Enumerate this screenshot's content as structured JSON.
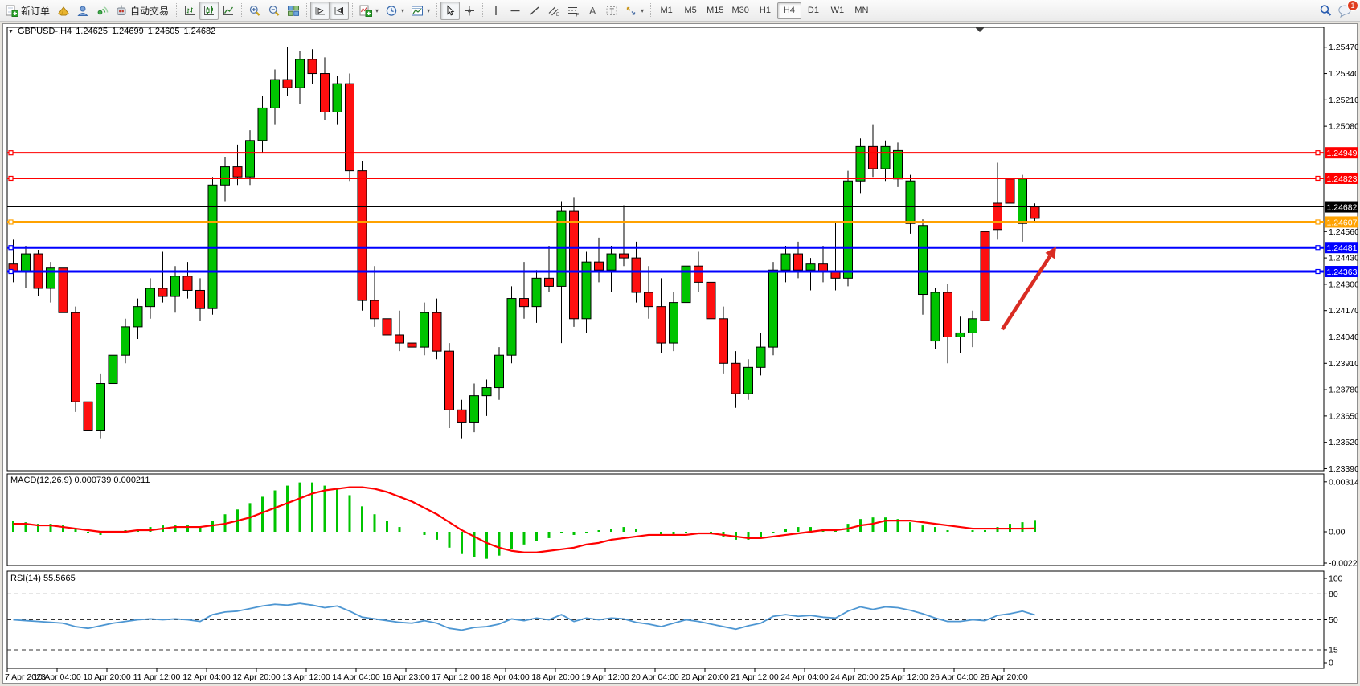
{
  "toolbar": {
    "groups": [
      {
        "items": [
          {
            "name": "new-order-button",
            "icon": "new-order-icon",
            "label": "新订单"
          },
          {
            "name": "metaeditor-button",
            "icon": "metaeditor-icon"
          },
          {
            "name": "mql5-community-button",
            "icon": "mql5-community-icon"
          },
          {
            "name": "signals-button",
            "icon": "signals-icon"
          },
          {
            "name": "autotrading-button",
            "icon": "autotrading-icon",
            "label": "自动交易"
          }
        ]
      },
      {
        "items": [
          {
            "name": "bar-chart-button",
            "icon": "bar-chart-icon"
          },
          {
            "name": "candlestick-button",
            "icon": "candlestick-icon",
            "pressed": true
          },
          {
            "name": "line-chart-button",
            "icon": "line-chart-icon"
          }
        ]
      },
      {
        "items": [
          {
            "name": "zoom-in-button",
            "icon": "zoom-in-icon"
          },
          {
            "name": "zoom-out-button",
            "icon": "zoom-out-icon"
          },
          {
            "name": "tile-windows-button",
            "icon": "tile-windows-icon"
          }
        ]
      },
      {
        "items": [
          {
            "name": "auto-scroll-button",
            "icon": "auto-scroll-icon",
            "pressed": true
          },
          {
            "name": "chart-shift-button",
            "icon": "chart-shift-icon",
            "pressed": true
          }
        ]
      },
      {
        "items": [
          {
            "name": "indicators-button",
            "icon": "indicators-icon",
            "dropdown": true
          },
          {
            "name": "periods-button",
            "icon": "period-icon",
            "dropdown": true
          },
          {
            "name": "templates-button",
            "icon": "template-icon",
            "dropdown": true
          }
        ]
      },
      {
        "items": [
          {
            "name": "cursor-button",
            "icon": "cursor-icon",
            "pressed": true
          },
          {
            "name": "crosshair-button",
            "icon": "crosshair-icon"
          }
        ]
      },
      {
        "items": [
          {
            "name": "vertical-line-button",
            "icon": "vertical-line-icon"
          },
          {
            "name": "horizontal-line-button",
            "icon": "horizontal-line-icon"
          },
          {
            "name": "trendline-button",
            "icon": "trendline-icon"
          },
          {
            "name": "equidistant-channel-button",
            "icon": "equidistant-channel-icon"
          },
          {
            "name": "fibonacci-button",
            "icon": "fibonacci-icon"
          },
          {
            "name": "text-button",
            "icon": "text-icon"
          },
          {
            "name": "text-label-button",
            "icon": "text-label-icon"
          },
          {
            "name": "arrows-button",
            "icon": "arrows-icon",
            "dropdown": true
          }
        ]
      }
    ],
    "timeframes": [
      "M1",
      "M5",
      "M15",
      "M30",
      "H1",
      "H4",
      "D1",
      "W1",
      "MN"
    ],
    "active_timeframe": "H4",
    "search_icon": "search-icon",
    "chat_icon": "chat-icon",
    "notification_badge": "1"
  },
  "chart": {
    "title": {
      "symbol_period": "GBPUSD-,H4",
      "open": "1.24625",
      "high": "1.24699",
      "low": "1.24605",
      "close": "1.24682"
    }
  },
  "chart_data": {
    "type": "candlestick",
    "symbol": "GBPUSD-,H4",
    "colors": {
      "bull": "#00c400",
      "bear": "#fe0f0f",
      "wick": "#000000",
      "macd_histogram": "#00c400",
      "macd_signal": "#ff0000",
      "rsi_line": "#4d96d2",
      "arrow": "#d92b22"
    },
    "price_axis_ticks": [
      1.2547,
      1.2534,
      1.2521,
      1.2508,
      1.2456,
      1.2443,
      1.243,
      1.2417,
      1.2404,
      1.2391,
      1.2378,
      1.2365,
      1.2352,
      1.2339
    ],
    "horizontal_lines": [
      {
        "price": 1.24949,
        "color": "#ff0000",
        "thickness": 2,
        "anchors": true
      },
      {
        "price": 1.24823,
        "color": "#ff0000",
        "thickness": 2,
        "anchors": true
      },
      {
        "price": 1.24682,
        "color": "#000000",
        "thickness": 1,
        "anchors": false
      },
      {
        "price": 1.24607,
        "color": "#ffa200",
        "thickness": 3,
        "anchors": true
      },
      {
        "price": 1.24481,
        "color": "#0000ff",
        "thickness": 3,
        "anchors": true
      },
      {
        "price": 1.24363,
        "color": "#0000ff",
        "thickness": 3,
        "anchors": true
      }
    ],
    "time_labels": [
      "7 Apr 2023",
      "10 Apr 04:00",
      "10 Apr 20:00",
      "11 Apr 12:00",
      "12 Apr 04:00",
      "12 Apr 20:00",
      "13 Apr 12:00",
      "14 Apr 04:00",
      "16 Apr 23:00",
      "17 Apr 12:00",
      "18 Apr 04:00",
      "18 Apr 20:00",
      "19 Apr 12:00",
      "20 Apr 04:00",
      "20 Apr 20:00",
      "21 Apr 12:00",
      "24 Apr 04:00",
      "24 Apr 20:00",
      "25 Apr 12:00",
      "26 Apr 04:00",
      "26 Apr 20:00"
    ],
    "candles": [
      [
        1.244,
        1.2452,
        1.2431,
        1.2436
      ],
      [
        1.2436,
        1.2449,
        1.2428,
        1.2445
      ],
      [
        1.2445,
        1.2447,
        1.2424,
        1.2428
      ],
      [
        1.2428,
        1.2441,
        1.2421,
        1.2438
      ],
      [
        1.2438,
        1.2443,
        1.241,
        1.2416
      ],
      [
        1.2416,
        1.2419,
        1.2367,
        1.2372
      ],
      [
        1.2372,
        1.2379,
        1.2352,
        1.2358
      ],
      [
        1.2358,
        1.2386,
        1.2354,
        1.2381
      ],
      [
        1.2381,
        1.2399,
        1.2376,
        1.2395
      ],
      [
        1.2395,
        1.2413,
        1.2391,
        1.2409
      ],
      [
        1.2409,
        1.2423,
        1.2403,
        1.2419
      ],
      [
        1.2419,
        1.2433,
        1.2413,
        1.2428
      ],
      [
        1.2428,
        1.2446,
        1.2421,
        1.2424
      ],
      [
        1.2424,
        1.2439,
        1.2416,
        1.2434
      ],
      [
        1.2434,
        1.2441,
        1.2423,
        1.2427
      ],
      [
        1.2427,
        1.2433,
        1.2412,
        1.2418
      ],
      [
        1.2418,
        1.2483,
        1.2415,
        1.2479
      ],
      [
        1.2479,
        1.2493,
        1.2471,
        1.2488
      ],
      [
        1.2488,
        1.2499,
        1.2479,
        1.2483
      ],
      [
        1.2483,
        1.2506,
        1.2479,
        1.2501
      ],
      [
        1.2501,
        1.2523,
        1.2495,
        1.2517
      ],
      [
        1.2517,
        1.2536,
        1.2509,
        1.2531
      ],
      [
        1.2531,
        1.2547,
        1.2523,
        1.2527
      ],
      [
        1.2527,
        1.2545,
        1.2519,
        1.2541
      ],
      [
        1.2541,
        1.2546,
        1.2529,
        1.2534
      ],
      [
        1.2534,
        1.2542,
        1.2511,
        1.2515
      ],
      [
        1.2515,
        1.2533,
        1.2509,
        1.2529
      ],
      [
        1.2529,
        1.2534,
        1.2481,
        1.2486
      ],
      [
        1.2486,
        1.2491,
        1.2417,
        1.2422
      ],
      [
        1.2422,
        1.2439,
        1.2409,
        1.2413
      ],
      [
        1.2413,
        1.2421,
        1.2399,
        1.2405
      ],
      [
        1.2405,
        1.2417,
        1.2397,
        1.2401
      ],
      [
        1.2401,
        1.2409,
        1.2389,
        1.2399
      ],
      [
        1.2399,
        1.2421,
        1.2395,
        1.2416
      ],
      [
        1.2416,
        1.2423,
        1.2393,
        1.2397
      ],
      [
        1.2397,
        1.2401,
        1.2359,
        1.2368
      ],
      [
        1.2368,
        1.2373,
        1.2354,
        1.2362
      ],
      [
        1.2362,
        1.2381,
        1.2357,
        1.2375
      ],
      [
        1.2375,
        1.2383,
        1.2365,
        1.2379
      ],
      [
        1.2379,
        1.2399,
        1.2373,
        1.2395
      ],
      [
        1.2395,
        1.2429,
        1.2391,
        1.2423
      ],
      [
        1.2423,
        1.2441,
        1.2413,
        1.2419
      ],
      [
        1.2419,
        1.2437,
        1.2411,
        1.2433
      ],
      [
        1.2433,
        1.2449,
        1.2426,
        1.2429
      ],
      [
        1.2429,
        1.2471,
        1.2401,
        1.2466
      ],
      [
        1.2466,
        1.2473,
        1.2409,
        1.2413
      ],
      [
        1.2413,
        1.2446,
        1.2406,
        1.2441
      ],
      [
        1.2441,
        1.2453,
        1.2431,
        1.2437
      ],
      [
        1.2437,
        1.2449,
        1.2426,
        1.2445
      ],
      [
        1.2445,
        1.2469,
        1.2439,
        1.2443
      ],
      [
        1.2443,
        1.2451,
        1.2421,
        1.2426
      ],
      [
        1.2426,
        1.2439,
        1.2413,
        1.2419
      ],
      [
        1.2419,
        1.2433,
        1.2396,
        1.2401
      ],
      [
        1.2401,
        1.2426,
        1.2397,
        1.2421
      ],
      [
        1.2421,
        1.2443,
        1.2416,
        1.2439
      ],
      [
        1.2439,
        1.2446,
        1.2426,
        1.2431
      ],
      [
        1.2431,
        1.2441,
        1.2409,
        1.2413
      ],
      [
        1.2413,
        1.2419,
        1.2386,
        1.2391
      ],
      [
        1.2391,
        1.2397,
        1.2369,
        1.2376
      ],
      [
        1.2376,
        1.2393,
        1.2373,
        1.2389
      ],
      [
        1.2389,
        1.2406,
        1.2385,
        1.2399
      ],
      [
        1.2399,
        1.2441,
        1.2395,
        1.2437
      ],
      [
        1.2437,
        1.2449,
        1.2431,
        1.2445
      ],
      [
        1.2445,
        1.2451,
        1.2433,
        1.2437
      ],
      [
        1.2437,
        1.2443,
        1.2427,
        1.244
      ],
      [
        1.244,
        1.2449,
        1.2431,
        1.2436
      ],
      [
        1.2436,
        1.2461,
        1.2427,
        1.2433
      ],
      [
        1.2433,
        1.2486,
        1.2429,
        1.2481
      ],
      [
        1.2481,
        1.2502,
        1.2475,
        1.2498
      ],
      [
        1.2498,
        1.2509,
        1.2483,
        1.2487
      ],
      [
        1.2487,
        1.2501,
        1.2481,
        1.2498
      ],
      [
        1.2482,
        1.25,
        1.2478,
        1.2496
      ],
      [
        1.246,
        1.2484,
        1.2455,
        1.2481
      ],
      [
        1.2425,
        1.2462,
        1.2415,
        1.2459
      ],
      [
        1.2402,
        1.2428,
        1.2398,
        1.2426
      ],
      [
        1.2426,
        1.243,
        1.2391,
        1.2404
      ],
      [
        1.2404,
        1.2414,
        1.2396,
        1.2406
      ],
      [
        1.2406,
        1.2417,
        1.2399,
        1.2413
      ],
      [
        1.2456,
        1.246,
        1.2404,
        1.2412
      ],
      [
        1.247,
        1.249,
        1.2452,
        1.2457
      ],
      [
        1.2482,
        1.252,
        1.2465,
        1.247
      ],
      [
        1.246,
        1.2484,
        1.2451,
        1.2482
      ],
      [
        1.24625,
        1.24699,
        1.24605,
        1.24682,
        "r"
      ]
    ],
    "macd": {
      "label": "MACD(12,26,9) 0.000739 0.000211",
      "axis_labels": [
        "0.00314",
        "0.00",
        "-0.002258"
      ],
      "histogram": [
        0.0007,
        0.0006,
        0.0005,
        0.0005,
        0.0004,
        0.0002,
        -0.0001,
        -0.0002,
        -0.0001,
        0.0001,
        0.0002,
        0.0003,
        0.0004,
        0.0004,
        0.0004,
        0.0003,
        0.0007,
        0.0011,
        0.0014,
        0.0018,
        0.0022,
        0.0026,
        0.0029,
        0.0031,
        0.0031,
        0.0029,
        0.0027,
        0.0023,
        0.0016,
        0.0011,
        0.0007,
        0.0003,
        0,
        -0.0002,
        -0.0005,
        -0.001,
        -0.0014,
        -0.0016,
        -0.0017,
        -0.0015,
        -0.0011,
        -0.0008,
        -0.0006,
        -0.0004,
        -0.0001,
        -0.0002,
        -0.0001,
        0.0001,
        0.0002,
        0.0003,
        0.0002,
        0,
        -0.0002,
        -0.0002,
        -0.0001,
        0,
        -0.0001,
        -0.0003,
        -0.0005,
        -0.0005,
        -0.0004,
        -0.0001,
        0.0002,
        0.0003,
        0.0003,
        0.0002,
        0.0002,
        0.0005,
        0.0008,
        0.0009,
        0.0009,
        0.0008,
        0.0006,
        0.0004,
        0.0003,
        0.0001,
        0,
        0.0001,
        0.0001,
        0.0003,
        0.0005,
        0.0006,
        0.00074
      ],
      "signal": [
        0.0005,
        0.0005,
        0.0004,
        0.0004,
        0.0003,
        0.0002,
        0.0001,
        0,
        0,
        0,
        0.0001,
        0.0001,
        0.0002,
        0.0003,
        0.0003,
        0.0003,
        0.0004,
        0.0005,
        0.0007,
        0.0009,
        0.0012,
        0.0015,
        0.0018,
        0.0021,
        0.0024,
        0.0026,
        0.0027,
        0.0028,
        0.0028,
        0.0027,
        0.0025,
        0.0022,
        0.0019,
        0.0015,
        0.0011,
        0.0006,
        0.0001,
        -0.0003,
        -0.0007,
        -0.001,
        -0.0012,
        -0.0013,
        -0.0013,
        -0.0012,
        -0.0011,
        -0.001,
        -0.0008,
        -0.0007,
        -0.0005,
        -0.0004,
        -0.0003,
        -0.0002,
        -0.0002,
        -0.0002,
        -0.0002,
        -0.0001,
        -0.0001,
        -0.0002,
        -0.0003,
        -0.0004,
        -0.0004,
        -0.0003,
        -0.0002,
        -0.0001,
        0,
        0.0001,
        0.0001,
        0.0002,
        0.0004,
        0.0005,
        0.0007,
        0.0007,
        0.0007,
        0.0006,
        0.0005,
        0.0004,
        0.0003,
        0.0002,
        0.0002,
        0.0002,
        0.0002,
        0.0002,
        0.00021
      ]
    },
    "rsi": {
      "label": "RSI(14) 55.5665",
      "axis_labels": [
        100,
        80,
        50,
        15,
        0
      ],
      "dashed_levels": [
        80,
        50,
        15
      ],
      "values": [
        50,
        49,
        48,
        47,
        46,
        42,
        40,
        43,
        46,
        48,
        50,
        51,
        50,
        51,
        50,
        48,
        56,
        59,
        60,
        63,
        66,
        68,
        67,
        69,
        67,
        64,
        66,
        60,
        53,
        51,
        49,
        47,
        46,
        49,
        46,
        40,
        38,
        41,
        42,
        45,
        51,
        49,
        52,
        50,
        56,
        48,
        52,
        50,
        52,
        51,
        47,
        45,
        42,
        46,
        50,
        48,
        45,
        42,
        39,
        43,
        46,
        54,
        56,
        54,
        55,
        53,
        52,
        60,
        65,
        62,
        65,
        64,
        61,
        57,
        52,
        48,
        48,
        50,
        49,
        55,
        57,
        60,
        55.57
      ]
    },
    "arrow_annotation": {
      "from": [
        1246,
        409
      ],
      "to": [
        1313,
        306
      ]
    }
  }
}
